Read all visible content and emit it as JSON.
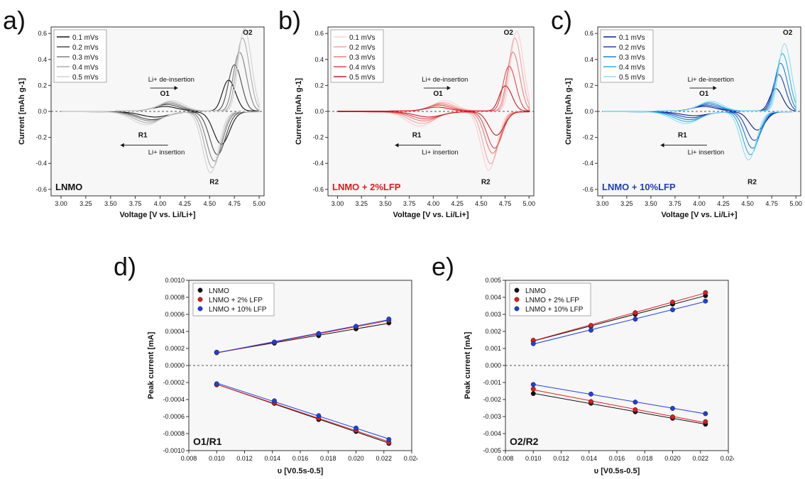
{
  "panels": {
    "a": "a)",
    "b": "b)",
    "c": "c)",
    "d": "d)",
    "e": "e)"
  },
  "chart_data": [
    {
      "id": "a",
      "type": "line",
      "sample_label": "LNMO",
      "sample_color": "#111111",
      "xlabel": "Voltage [V vs. Li/Li+]",
      "ylabel": "Current [mAh g-1]",
      "xlim": [
        2.9,
        5.05
      ],
      "ylim": [
        -0.65,
        0.65
      ],
      "xticks": [
        "3.00",
        "3.25",
        "3.50",
        "3.75",
        "4.00",
        "4.25",
        "4.50",
        "4.75",
        "5.00"
      ],
      "yticks": [
        "-0.6",
        "-0.4",
        "-0.2",
        "0.0",
        "0.2",
        "0.4",
        "0.6"
      ],
      "grid": false,
      "legend_position": "top-left",
      "annotations": {
        "O1": "O1",
        "O2": "O2",
        "R1": "R1",
        "R2": "R2",
        "deins": "Li+ de-insertion",
        "ins": "Li+ insertion"
      },
      "series": [
        {
          "name": "0.1 mVs",
          "color": "#111111",
          "rate": 0.1
        },
        {
          "name": "0.2 mVs",
          "color": "#4a4a4a",
          "rate": 0.2
        },
        {
          "name": "0.3 mVs",
          "color": "#808080",
          "rate": 0.3
        },
        {
          "name": "0.4 mVs",
          "color": "#ababab",
          "rate": 0.4
        },
        {
          "name": "0.5 mVs",
          "color": "#d2d2d2",
          "rate": 0.5
        }
      ],
      "peaks_by_rate": {
        "O2": [
          [
            4.72,
            0.22
          ],
          [
            4.78,
            0.33
          ],
          [
            4.83,
            0.42
          ],
          [
            4.86,
            0.52
          ],
          [
            4.88,
            0.59
          ]
        ],
        "R2": [
          [
            4.62,
            -0.25
          ],
          [
            4.58,
            -0.33
          ],
          [
            4.55,
            -0.38
          ],
          [
            4.53,
            -0.43
          ],
          [
            4.51,
            -0.47
          ]
        ],
        "O1": [
          [
            4.05,
            0.035
          ],
          [
            4.07,
            0.05
          ],
          [
            4.09,
            0.06
          ],
          [
            4.1,
            0.07
          ],
          [
            4.12,
            0.08
          ]
        ],
        "R1": [
          [
            3.95,
            -0.04
          ],
          [
            3.92,
            -0.06
          ],
          [
            3.9,
            -0.07
          ],
          [
            3.88,
            -0.085
          ],
          [
            3.86,
            -0.1
          ]
        ]
      }
    },
    {
      "id": "b",
      "type": "line",
      "sample_label": "LNMO + 2%LFP",
      "sample_color": "#e31a1c",
      "xlabel": "Voltage [V vs. Li/Li+]",
      "ylabel": "Current [mAh g-1]",
      "xlim": [
        2.9,
        5.05
      ],
      "ylim": [
        -0.65,
        0.65
      ],
      "xticks": [
        "3.00",
        "3.25",
        "3.50",
        "3.75",
        "4.00",
        "4.25",
        "4.50",
        "4.75",
        "5.00"
      ],
      "yticks": [
        "-0.6",
        "-0.4",
        "-0.2",
        "0.0",
        "0.2",
        "0.4",
        "0.6"
      ],
      "grid": false,
      "legend_position": "top-left",
      "annotations": {
        "O1": "O1",
        "O2": "O2",
        "R1": "R1",
        "R2": "R2",
        "deins": "Li+ de-insertion",
        "ins": "Li+ insertion"
      },
      "series": [
        {
          "name": "0.1 mVs",
          "color": "#fbd0cf",
          "rate": 0.1
        },
        {
          "name": "0.2 mVs",
          "color": "#f6a4a2",
          "rate": 0.2
        },
        {
          "name": "0.3 mVs",
          "color": "#f07a78",
          "rate": 0.3
        },
        {
          "name": "0.4 mVs",
          "color": "#e8474a",
          "rate": 0.4
        },
        {
          "name": "0.5 mVs",
          "color": "#cf1a1f",
          "rate": 0.5
        }
      ],
      "peaks_by_rate": {
        "O2": [
          [
            4.9,
            0.57
          ],
          [
            4.88,
            0.52
          ],
          [
            4.86,
            0.42
          ],
          [
            4.82,
            0.32
          ],
          [
            4.78,
            0.18
          ]
        ],
        "R2": [
          [
            4.58,
            -0.45
          ],
          [
            4.6,
            -0.4
          ],
          [
            4.62,
            -0.32
          ],
          [
            4.64,
            -0.28
          ],
          [
            4.66,
            -0.18
          ]
        ],
        "O1": [
          [
            4.12,
            0.08
          ],
          [
            4.1,
            0.065
          ],
          [
            4.08,
            0.055
          ],
          [
            4.06,
            0.045
          ],
          [
            4.04,
            0.03
          ]
        ],
        "R1": [
          [
            3.86,
            -0.11
          ],
          [
            3.88,
            -0.09
          ],
          [
            3.9,
            -0.07
          ],
          [
            3.92,
            -0.055
          ],
          [
            3.95,
            -0.04
          ]
        ]
      }
    },
    {
      "id": "c",
      "type": "line",
      "sample_label": "LNMO + 10%LFP",
      "sample_color": "#1f3fbf",
      "xlabel": "Voltage [V vs. Li/Li+]",
      "ylabel": "Current [mAh g-1]",
      "xlim": [
        2.95,
        5.05
      ],
      "ylim": [
        -0.65,
        0.65
      ],
      "xticks": [
        "3.00",
        "3.25",
        "3.50",
        "3.75",
        "4.00",
        "4.25",
        "4.50",
        "4.75",
        "5.00"
      ],
      "yticks": [
        "-0.6",
        "-0.4",
        "-0.2",
        "0.0",
        "0.2",
        "0.4",
        "0.6"
      ],
      "grid": false,
      "legend_position": "top-left",
      "annotations": {
        "O1": "O1",
        "O2": "O2",
        "R1": "R1",
        "R2": "R2",
        "deins": "Li+ de-insertion",
        "ins": "Li+ insertion"
      },
      "series": [
        {
          "name": "0.1 mVs",
          "color": "#0a1f8f",
          "rate": 0.1
        },
        {
          "name": "0.2 mVs",
          "color": "#2440b8",
          "rate": 0.2
        },
        {
          "name": "0.3 mVs",
          "color": "#1f7fd0",
          "rate": 0.3
        },
        {
          "name": "0.4 mVs",
          "color": "#27b3e8",
          "rate": 0.4
        },
        {
          "name": "0.5 mVs",
          "color": "#8fdcf5",
          "rate": 0.5
        }
      ],
      "peaks_by_rate": {
        "O2": [
          [
            4.82,
            0.16
          ],
          [
            4.85,
            0.26
          ],
          [
            4.87,
            0.34
          ],
          [
            4.89,
            0.41
          ],
          [
            4.91,
            0.48
          ]
        ],
        "R2": [
          [
            4.6,
            -0.14
          ],
          [
            4.57,
            -0.22
          ],
          [
            4.55,
            -0.28
          ],
          [
            4.53,
            -0.33
          ],
          [
            4.51,
            -0.37
          ]
        ],
        "O1": [
          [
            4.05,
            0.035
          ],
          [
            4.07,
            0.045
          ],
          [
            4.09,
            0.055
          ],
          [
            4.1,
            0.065
          ],
          [
            4.12,
            0.075
          ]
        ],
        "R1": [
          [
            3.95,
            -0.03
          ],
          [
            3.92,
            -0.045
          ],
          [
            3.9,
            -0.06
          ],
          [
            3.88,
            -0.075
          ],
          [
            3.86,
            -0.09
          ]
        ]
      }
    },
    {
      "id": "d",
      "type": "scatter",
      "sample_label": "O1/R1",
      "xlabel": "υ [V0.5s-0.5]",
      "ylabel": "Peak current [mA]",
      "xlim": [
        0.008,
        0.024
      ],
      "ylim": [
        -0.001,
        0.001
      ],
      "xticks": [
        "0.008",
        "0.010",
        "0.012",
        "0.014",
        "0.016",
        "0.018",
        "0.020",
        "0.022",
        "0.024"
      ],
      "yticks": [
        "-0.0010",
        "-0.0008",
        "-0.0006",
        "-0.0004",
        "-0.0002",
        "0.0000",
        "0.0002",
        "0.0004",
        "0.0006",
        "0.0008",
        "0.0010"
      ],
      "grid": false,
      "legend_position": "top-left",
      "x": [
        0.01,
        0.01414,
        0.01732,
        0.02,
        0.02236
      ],
      "series": [
        {
          "name": "LNMO",
          "color": "#111111",
          "anodic": [
            0.000155,
            0.000262,
            0.00035,
            0.00043,
            0.0005
          ],
          "cathodic": [
            -0.000225,
            -0.000445,
            -0.000635,
            -0.000775,
            -0.000915
          ]
        },
        {
          "name": "LNMO + 2% LFP",
          "color": "#e31a1c",
          "anodic": [
            0.00015,
            0.00027,
            0.00037,
            0.000455,
            0.00053
          ],
          "cathodic": [
            -0.000228,
            -0.000438,
            -0.00062,
            -0.00076,
            -0.000905
          ]
        },
        {
          "name": "LNMO + 10% LFP",
          "color": "#1f3fe0",
          "anodic": [
            0.000155,
            0.000275,
            0.000375,
            0.00046,
            0.000545
          ],
          "cathodic": [
            -0.000215,
            -0.000415,
            -0.00059,
            -0.000735,
            -0.00087
          ]
        }
      ]
    },
    {
      "id": "e",
      "type": "scatter",
      "sample_label": "O2/R2",
      "xlabel": "υ [V0.5s-0.5]",
      "ylabel": "Peak current [mA]",
      "xlim": [
        0.008,
        0.024
      ],
      "ylim": [
        -0.005,
        0.005
      ],
      "xticks": [
        "0.008",
        "0.010",
        "0.012",
        "0.014",
        "0.016",
        "0.018",
        "0.020",
        "0.022",
        "0.024"
      ],
      "yticks": [
        "-0.005",
        "-0.004",
        "-0.003",
        "-0.002",
        "-0.001",
        "0.000",
        "0.001",
        "0.002",
        "0.003",
        "0.004",
        "0.005"
      ],
      "grid": false,
      "legend_position": "top-left",
      "x": [
        0.01,
        0.01414,
        0.01732,
        0.02,
        0.02236
      ],
      "series": [
        {
          "name": "LNMO",
          "color": "#111111",
          "anodic": [
            0.00145,
            0.0023,
            0.003,
            0.0036,
            0.0041
          ],
          "cathodic": [
            -0.00165,
            -0.00222,
            -0.00272,
            -0.0031,
            -0.00345
          ]
        },
        {
          "name": "LNMO + 2% LFP",
          "color": "#e31a1c",
          "anodic": [
            0.00148,
            0.00235,
            0.0031,
            0.00372,
            0.00428
          ],
          "cathodic": [
            -0.00138,
            -0.00212,
            -0.0026,
            -0.00302,
            -0.0033
          ]
        },
        {
          "name": "LNMO + 10% LFP",
          "color": "#1f3fe0",
          "anodic": [
            0.00128,
            0.00207,
            0.00272,
            0.00327,
            0.00378
          ],
          "cathodic": [
            -0.00112,
            -0.00168,
            -0.00215,
            -0.00252,
            -0.00283
          ]
        }
      ]
    }
  ]
}
